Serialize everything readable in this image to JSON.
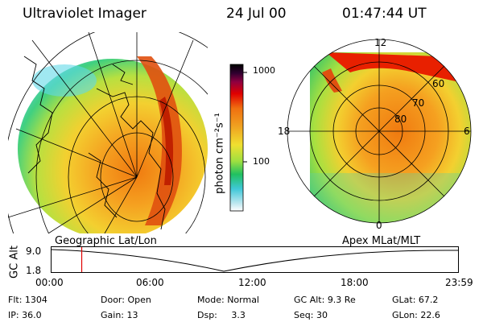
{
  "header": {
    "instrument": "Ultraviolet Imager",
    "date": "24 Jul 00",
    "time": "01:47:44 UT"
  },
  "colorbar": {
    "unit_label": "photon cm⁻²s⁻¹",
    "ticks": [
      "1000",
      "100"
    ],
    "scale": "log"
  },
  "left_map": {
    "projection": "Geographic Lat/Lon"
  },
  "right_map": {
    "projection": "Apex MLat/MLT",
    "mlt_labels": {
      "top": "12",
      "left": "18",
      "right": "6",
      "bottom": "0"
    },
    "lat_labels": [
      "60",
      "70",
      "80"
    ]
  },
  "timeline": {
    "ylabel": "GC Alt",
    "ytick_top": "9.0",
    "ytick_bottom": "1.8",
    "xticks": [
      "00:00",
      "06:00",
      "12:00",
      "18:00",
      "23:59"
    ],
    "current_marker_time": "01:47",
    "marker_color": "#e00000"
  },
  "info": {
    "flt_label": "Flt:",
    "flt_value": "1304",
    "ip_label": "IP:",
    "ip_value": "36.0",
    "door_label": "Door:",
    "door_value": "Open",
    "gain_label": "Gain:",
    "gain_value": "13",
    "mode_label": "Mode:",
    "mode_value": "Normal",
    "dsp_label": "Dsp:",
    "dsp_value": "3.3",
    "gcalt_label": "GC Alt:",
    "gcalt_value": "9.3 Re",
    "seq_label": "Seq:",
    "seq_value": "30",
    "glat_label": "GLat:",
    "glat_value": "67.2",
    "glon_label": "GLon:",
    "glon_value": "22.6"
  }
}
